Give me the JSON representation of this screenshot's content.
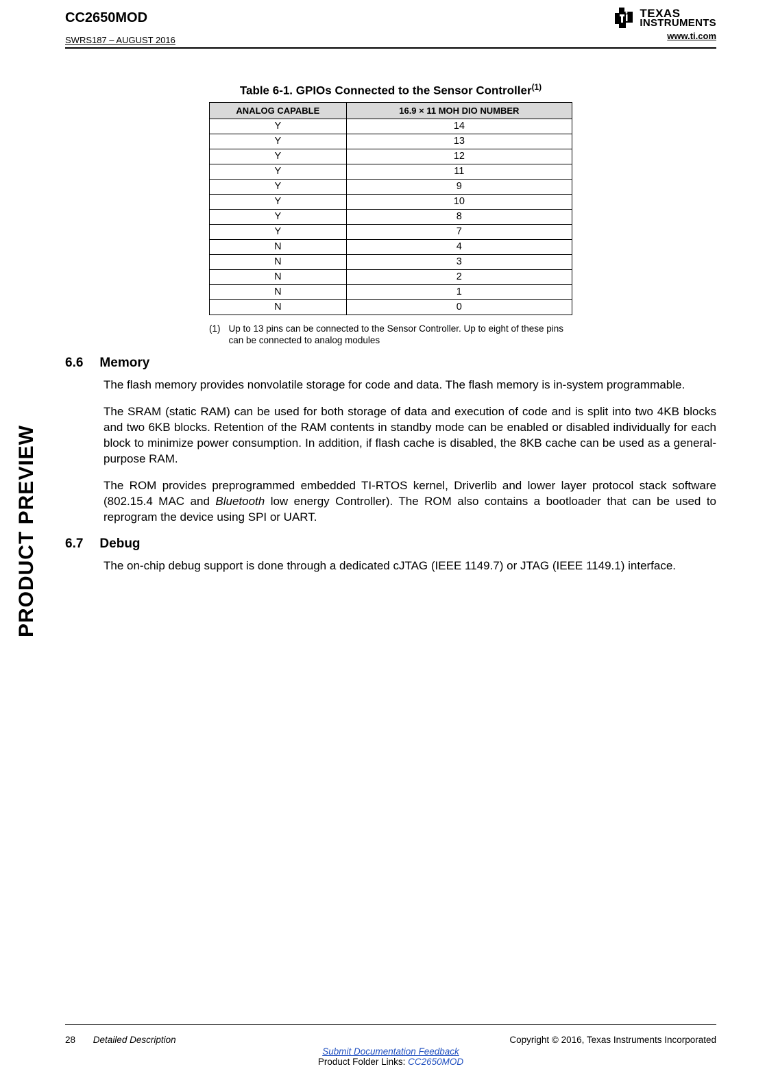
{
  "header": {
    "doc_title": "CC2650MOD",
    "doc_sub": "SWRS187 – AUGUST 2016",
    "brand_top": "TEXAS",
    "brand_bottom": "INSTRUMENTS",
    "url": "www.ti.com"
  },
  "side_label": "PRODUCT PREVIEW",
  "table": {
    "title_prefix": "Table 6-1. GPIOs Connected to the Sensor Controller",
    "title_sup": "(1)",
    "col_a": "ANALOG CAPABLE",
    "col_b": "16.9 × 11 MOH DIO NUMBER",
    "rows": [
      {
        "a": "Y",
        "b": "14"
      },
      {
        "a": "Y",
        "b": "13"
      },
      {
        "a": "Y",
        "b": "12"
      },
      {
        "a": "Y",
        "b": "11"
      },
      {
        "a": "Y",
        "b": "9"
      },
      {
        "a": "Y",
        "b": "10"
      },
      {
        "a": "Y",
        "b": "8"
      },
      {
        "a": "Y",
        "b": "7"
      },
      {
        "a": "N",
        "b": "4"
      },
      {
        "a": "N",
        "b": "3"
      },
      {
        "a": "N",
        "b": "2"
      },
      {
        "a": "N",
        "b": "1"
      },
      {
        "a": "N",
        "b": "0"
      }
    ],
    "footnote_num": "(1)",
    "footnote_text": "Up to 13 pins can be connected to the Sensor Controller. Up to eight of these pins can be connected to analog modules"
  },
  "sections": {
    "memory": {
      "num": "6.6",
      "title": "Memory",
      "p1": "The flash memory provides nonvolatile storage for code and data. The flash memory is in-system programmable.",
      "p2": "The SRAM (static RAM) can be used for both storage of data and execution of code and is split into two 4KB blocks and two 6KB blocks. Retention of the RAM contents in standby mode can be enabled or disabled individually for each block to minimize power consumption. In addition, if flash cache is disabled, the 8KB cache can be used as a general-purpose RAM.",
      "p3_a": "The ROM provides preprogrammed embedded TI-RTOS kernel, Driverlib and lower layer protocol stack software (802.15.4 MAC and ",
      "p3_ital": "Bluetooth",
      "p3_b": " low energy Controller). The ROM also contains a bootloader that can be used to reprogram the device using SPI or UART."
    },
    "debug": {
      "num": "6.7",
      "title": "Debug",
      "p1": "The on-chip debug support is done through a dedicated cJTAG (IEEE 1149.7) or JTAG (IEEE 1149.1) interface."
    }
  },
  "footer": {
    "page_num": "28",
    "section_name": "Detailed Description",
    "copyright": "Copyright © 2016, Texas Instruments Incorporated",
    "link1": "Submit Documentation Feedback",
    "links_prefix": "Product Folder Links: ",
    "link2": "CC2650MOD"
  }
}
